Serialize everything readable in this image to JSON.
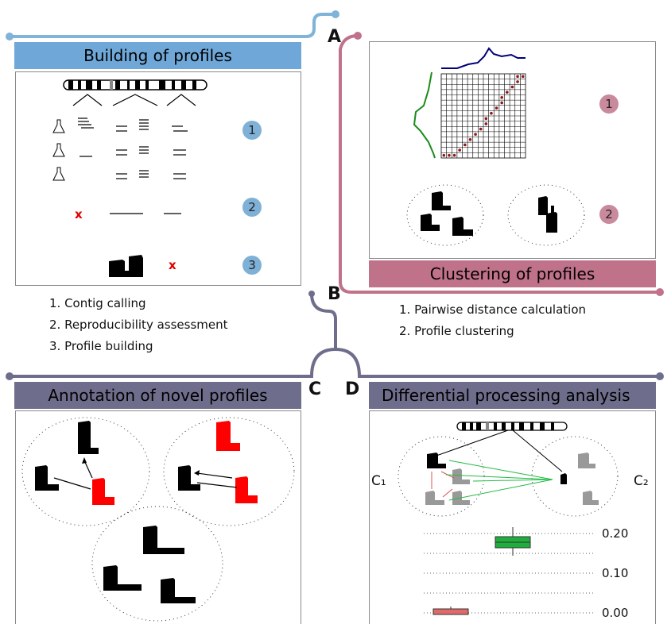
{
  "panels": {
    "A": {
      "letter": "A",
      "title": "Building of profiles",
      "steps": [
        "1. Contig calling",
        "2. Reproducibility assessment",
        "3. Profile building"
      ],
      "badges": [
        "1",
        "2",
        "3"
      ]
    },
    "B": {
      "letter": "B",
      "title": "Clustering of profiles",
      "steps": [
        "1. Pairwise distance calculation",
        "2. Profile clustering"
      ],
      "badges": [
        "1",
        "2"
      ]
    },
    "C": {
      "letter": "C",
      "title": "Annotation of novel profiles"
    },
    "D": {
      "letter": "D",
      "title": "Differential processing analysis",
      "cluster_labels": [
        "C₁",
        "C₂"
      ],
      "axis_ticks": [
        "0.20",
        "0.10",
        "0.00"
      ]
    }
  },
  "colors": {
    "blue": "#6fa8d8",
    "pink": "#c0728a",
    "slate": "#6e6e8c",
    "red": "#e00000",
    "green": "#2aa44a"
  }
}
